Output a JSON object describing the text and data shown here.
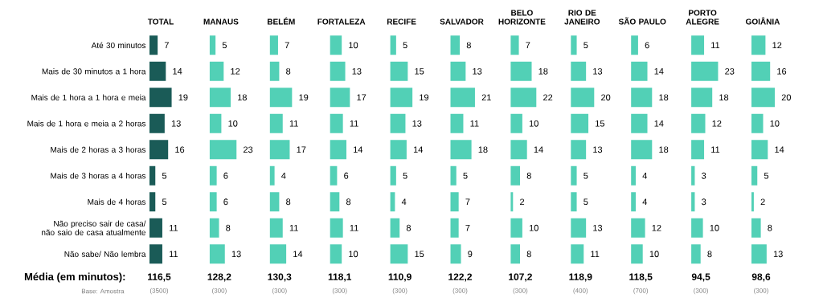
{
  "chart_data": [
    {
      "type": "bar",
      "orientation": "horizontal",
      "title": "TOTAL",
      "categories": [
        "Até 30 minutos",
        "Mais de 30 minutos  a 1 hora",
        "Mais de 1 hora a 1 hora e meia",
        "Mais de 1 hora e meia a 2 horas",
        "Mais de 2 horas a 3 horas",
        "Mais de 3 horas a 4 horas",
        "Mais de 4 horas",
        "Não preciso sair de casa/ não saio de casa atualmente",
        "Não sabe/ Não lembra"
      ],
      "values": [
        7,
        14,
        19,
        13,
        16,
        5,
        5,
        11,
        11
      ],
      "color": "#1a5b57",
      "data_labels": true,
      "annotations": [
        "116,5",
        "(3500)",
        "Média (em minutos):",
        "Base: Amostra"
      ]
    },
    {
      "type": "bar",
      "orientation": "horizontal",
      "title": "MANAUS",
      "categories": [
        null,
        null,
        null,
        null,
        null,
        null,
        null,
        null,
        null
      ],
      "values": [
        5,
        12,
        18,
        10,
        23,
        6,
        6,
        8,
        13
      ],
      "color": "#52d0b6",
      "data_labels": true,
      "annotations": [
        "128,2",
        "(300)"
      ]
    },
    {
      "type": "bar",
      "orientation": "horizontal",
      "title": "BELÉM",
      "categories": [
        null,
        null,
        null,
        null,
        null,
        null,
        null,
        null,
        null
      ],
      "values": [
        7,
        8,
        19,
        11,
        17,
        4,
        8,
        11,
        14
      ],
      "color": "#52d0b6",
      "data_labels": true,
      "annotations": [
        "130,3",
        "(300)"
      ]
    },
    {
      "type": "bar",
      "orientation": "horizontal",
      "title": "FORTALEZA",
      "categories": [
        null,
        null,
        null,
        null,
        null,
        null,
        null,
        null,
        null
      ],
      "values": [
        10,
        13,
        17,
        11,
        14,
        6,
        8,
        11,
        10
      ],
      "color": "#52d0b6",
      "data_labels": true,
      "annotations": [
        "118,1",
        "(300)"
      ]
    },
    {
      "type": "bar",
      "orientation": "horizontal",
      "title": "RECIFE",
      "categories": [
        null,
        null,
        null,
        null,
        null,
        null,
        null,
        null,
        null
      ],
      "values": [
        5,
        15,
        19,
        13,
        14,
        5,
        4,
        8,
        15
      ],
      "color": "#52d0b6",
      "data_labels": true,
      "annotations": [
        "110,9",
        "(300)"
      ]
    },
    {
      "type": "bar",
      "orientation": "horizontal",
      "title": "SALVADOR",
      "categories": [
        null,
        null,
        null,
        null,
        null,
        null,
        null,
        null,
        null
      ],
      "values": [
        8,
        13,
        21,
        11,
        18,
        5,
        7,
        7,
        9
      ],
      "color": "#52d0b6",
      "data_labels": true,
      "annotations": [
        "122,2",
        "(300)"
      ]
    },
    {
      "type": "bar",
      "orientation": "horizontal",
      "title": "BELO HORIZONTE",
      "categories": [
        null,
        null,
        null,
        null,
        null,
        null,
        null,
        null,
        null
      ],
      "values": [
        7,
        18,
        22,
        10,
        14,
        8,
        2,
        10,
        8
      ],
      "color": "#52d0b6",
      "data_labels": true,
      "annotations": [
        "107,2",
        "(300)"
      ]
    },
    {
      "type": "bar",
      "orientation": "horizontal",
      "title": "RIO DE JANEIRO",
      "categories": [
        null,
        null,
        null,
        null,
        null,
        null,
        null,
        null,
        null
      ],
      "values": [
        5,
        13,
        20,
        15,
        13,
        5,
        5,
        13,
        11
      ],
      "color": "#52d0b6",
      "data_labels": true,
      "annotations": [
        "118,9",
        "(400)"
      ]
    },
    {
      "type": "bar",
      "orientation": "horizontal",
      "title": "SÃO PAULO",
      "categories": [
        null,
        null,
        null,
        null,
        null,
        null,
        null,
        null,
        null
      ],
      "values": [
        6,
        14,
        18,
        14,
        18,
        4,
        4,
        12,
        10
      ],
      "color": "#52d0b6",
      "data_labels": true,
      "annotations": [
        "118,5",
        "(700)"
      ]
    },
    {
      "type": "bar",
      "orientation": "horizontal",
      "title": "PORTO ALEGRE",
      "categories": [
        null,
        null,
        null,
        null,
        null,
        null,
        null,
        null,
        null
      ],
      "values": [
        11,
        23,
        18,
        12,
        11,
        3,
        3,
        10,
        8
      ],
      "color": "#52d0b6",
      "data_labels": true,
      "annotations": [
        "94,5",
        "(300)"
      ]
    },
    {
      "type": "bar",
      "orientation": "horizontal",
      "title": "GOIÂNIA",
      "categories": [
        null,
        null,
        null,
        null,
        null,
        null,
        null,
        null,
        null
      ],
      "values": [
        12,
        16,
        20,
        10,
        14,
        5,
        2,
        8,
        13
      ],
      "color": "#52d0b6",
      "data_labels": true,
      "annotations": [
        "98,6",
        "(300)"
      ]
    }
  ]
}
